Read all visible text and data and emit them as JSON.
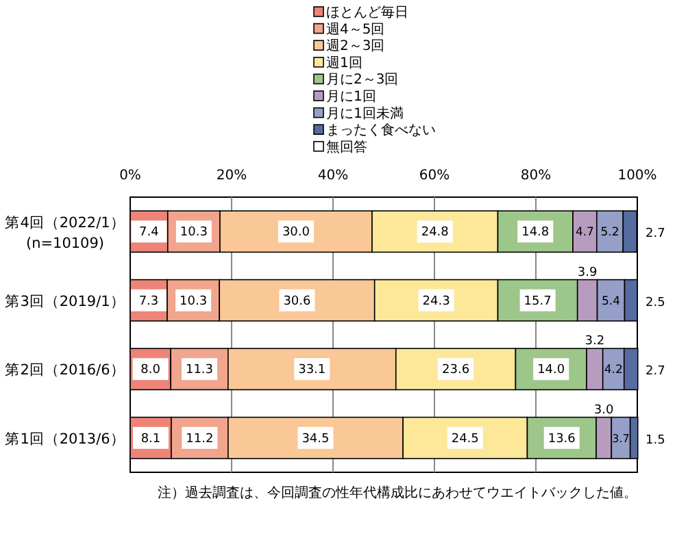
{
  "chart_data": {
    "type": "bar",
    "orientation": "horizontal",
    "stacked": true,
    "categories": [
      "第4回（2022/1）\n(n=10109)",
      "第3回（2019/1）",
      "第2回（2016/6）",
      "第1回（2013/6）"
    ],
    "series": [
      {
        "name": "ほとんど毎日",
        "color": "#ee8377",
        "values": [
          7.4,
          7.3,
          8.0,
          8.1
        ],
        "value_labels": [
          "7.4",
          "7.3",
          "8.0",
          "8.1"
        ]
      },
      {
        "name": "週4～5回",
        "color": "#f0a58c",
        "values": [
          10.3,
          10.3,
          11.3,
          11.2
        ],
        "value_labels": [
          "10.3",
          "10.3",
          "11.3",
          "11.2"
        ]
      },
      {
        "name": "週2～3回",
        "color": "#f9c896",
        "values": [
          30.0,
          30.6,
          33.1,
          34.5
        ],
        "value_labels": [
          "30.0",
          "30.6",
          "33.1",
          "34.5"
        ]
      },
      {
        "name": "週1回",
        "color": "#fde89a",
        "values": [
          24.8,
          24.3,
          23.6,
          24.5
        ],
        "value_labels": [
          "24.8",
          "24.3",
          "23.6",
          "24.5"
        ]
      },
      {
        "name": "月に2～3回",
        "color": "#9dc78a",
        "values": [
          14.8,
          15.7,
          14.0,
          13.6
        ],
        "value_labels": [
          "14.8",
          "15.7",
          "14.0",
          "13.6"
        ]
      },
      {
        "name": "月に1回",
        "color": "#b89cc0",
        "values": [
          4.7,
          3.9,
          3.2,
          3.0
        ],
        "value_labels": [
          "4.7",
          "3.9",
          "3.2",
          "3.0"
        ]
      },
      {
        "name": "月に1回未満",
        "color": "#959fc8",
        "values": [
          5.2,
          5.4,
          4.2,
          3.7
        ],
        "value_labels": [
          "5.2",
          "5.4",
          "4.2",
          "3.7"
        ]
      },
      {
        "name": "まったく食べない",
        "color": "#566ca0",
        "values": [
          2.7,
          2.5,
          2.7,
          1.5
        ],
        "value_labels": [
          "2.7",
          "2.5",
          "2.7",
          "1.5"
        ]
      },
      {
        "name": "無回答",
        "color": "#ffffff",
        "values": [
          null,
          null,
          null,
          null
        ]
      }
    ],
    "xlim": [
      0,
      100
    ],
    "xticks": [
      {
        "value": 0,
        "label": "0%"
      },
      {
        "value": 20,
        "label": "20%"
      },
      {
        "value": 40,
        "label": "40%"
      },
      {
        "value": 60,
        "label": "60%"
      },
      {
        "value": 80,
        "label": "80%"
      },
      {
        "value": 100,
        "label": "100%"
      }
    ],
    "grid": "x",
    "legend": "top",
    "annotations": [
      "注）過去調査は、今回調査の性年代構成比にあわせてウエイトバックした値。"
    ]
  }
}
